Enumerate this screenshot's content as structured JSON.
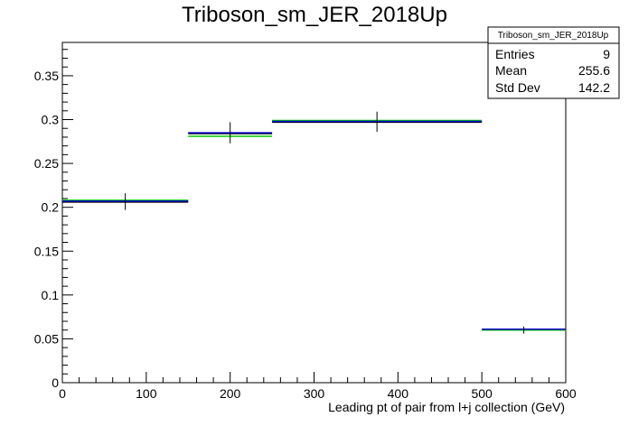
{
  "chart_data": {
    "type": "histogram",
    "title": "Triboson_sm_JER_2018Up",
    "xlabel": "Leading pt of pair from l+j collection (GeV)",
    "ylabel": "",
    "xlim": [
      0,
      600
    ],
    "ylim": [
      0,
      0.388
    ],
    "x_ticks": [
      "0",
      "100",
      "200",
      "300",
      "400",
      "500",
      "600"
    ],
    "y_ticks": [
      "0",
      "0.05",
      "0.1",
      "0.15",
      "0.2",
      "0.25",
      "0.3",
      "0.35"
    ],
    "bins": [
      {
        "x_low": 0,
        "x_high": 150,
        "x_center": 75,
        "value": 0.206,
        "error_low": 0.197,
        "error_high": 0.216
      },
      {
        "x_low": 150,
        "x_high": 250,
        "x_center": 200,
        "value": 0.284,
        "error_low": 0.273,
        "error_high": 0.297
      },
      {
        "x_low": 250,
        "x_high": 500,
        "x_center": 375,
        "value": 0.297,
        "error_low": 0.286,
        "error_high": 0.309
      },
      {
        "x_low": 500,
        "x_high": 600,
        "x_center": 550,
        "value": 0.06,
        "error_low": 0.056,
        "error_high": 0.064
      }
    ],
    "series": [
      {
        "values": [
          0.206,
          0.284,
          0.297,
          0.06
        ],
        "color": "#000000"
      },
      {
        "values": [
          0.208,
          0.281,
          0.299,
          0.06
        ],
        "color": "#00cc00"
      },
      {
        "values": [
          0.207,
          0.285,
          0.298,
          0.061
        ],
        "color": "#0000cc"
      }
    ],
    "stats_box": {
      "title": "Triboson_sm_JER_2018Up",
      "rows": [
        {
          "label": "Entries",
          "value": "9"
        },
        {
          "label": "Mean",
          "value": "255.6"
        },
        {
          "label": "Std Dev",
          "value": "142.2"
        }
      ]
    }
  }
}
